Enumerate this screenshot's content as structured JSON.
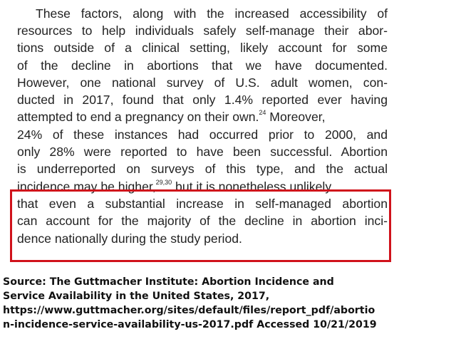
{
  "paragraph": {
    "lines": [
      "These factors, along with the increased accessibility of",
      "resources to help individuals safely self-manage their abor-",
      "tions outside of a clinical setting, likely account for some",
      "of the decline in abortions that we have documented.",
      "However, one national survey of U.S. adult women, con-",
      "ducted in 2017, found that only 1.4% reported ever having",
      "attempted to end a pregnancy on their own.",
      "24",
      " Moreover,",
      "24% of these instances had occurred prior to 2000, and",
      "only 28% were reported to have been successful. Abortion",
      "is underreported on surveys of this type, and the actual",
      "incidence may be higher,",
      "29,30",
      " but it is nonetheless unlikely",
      "that even a substantial increase in self-managed abortion",
      "can account for the majority of the decline in abortion inci-",
      "dence nationally during the study period."
    ]
  },
  "source": {
    "lines": [
      "Source: The Guttmacher Institute: Abortion Incidence and",
      "Service Availability in the United States, 2017,",
      "https://www.guttmacher.org/sites/default/files/report_pdf/abortio",
      "n-incidence-service-availability-us-2017.pdf Accessed 10/21/2019"
    ]
  },
  "colors": {
    "highlight_border": "#d0121b",
    "text": "#222222"
  }
}
